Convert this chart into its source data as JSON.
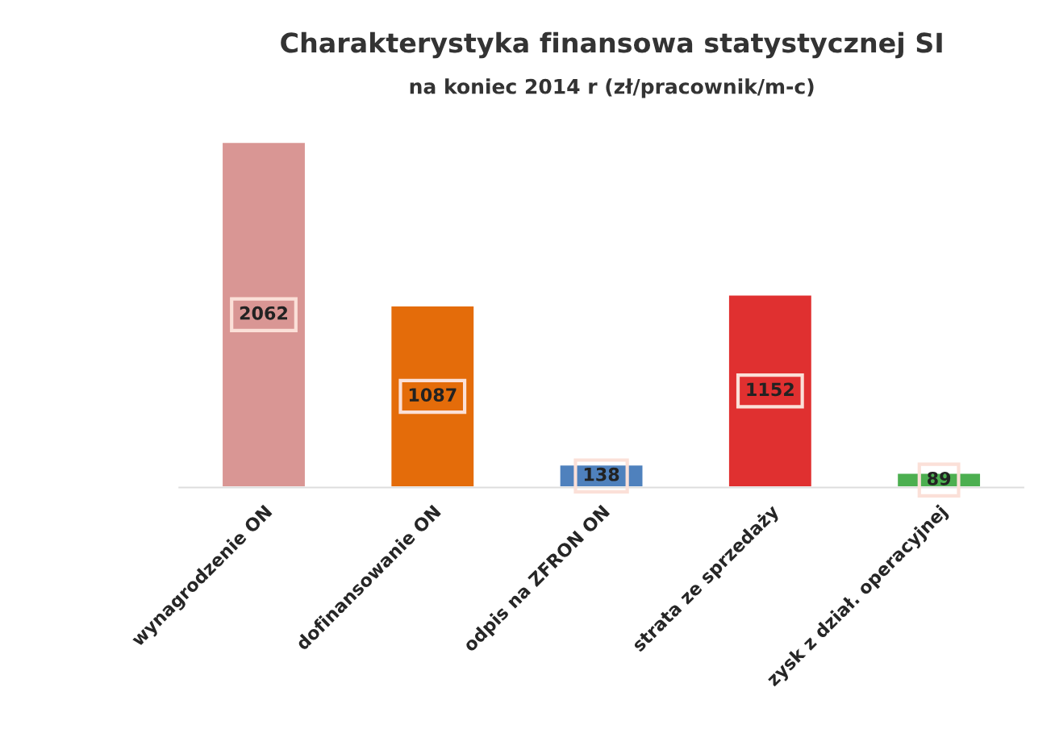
{
  "chart_data": {
    "type": "bar",
    "title": "Charakterystyka finansowa statystycznej SI",
    "subtitle": "na koniec 2014 r (zł/pracownik/m-c)",
    "categories": [
      "wynagrodzenie ON",
      "dofinansowanie ON",
      "odpis na ZFRON ON",
      "strata ze sprzedaży",
      "zysk z dział. operacyjnej"
    ],
    "values": [
      2062,
      1087,
      138,
      1152,
      89
    ],
    "colors": [
      "#d99694",
      "#e46c0a",
      "#4f81bd",
      "#e03030",
      "#4caf50"
    ],
    "data_labels": true,
    "grid": false,
    "legend": false
  }
}
